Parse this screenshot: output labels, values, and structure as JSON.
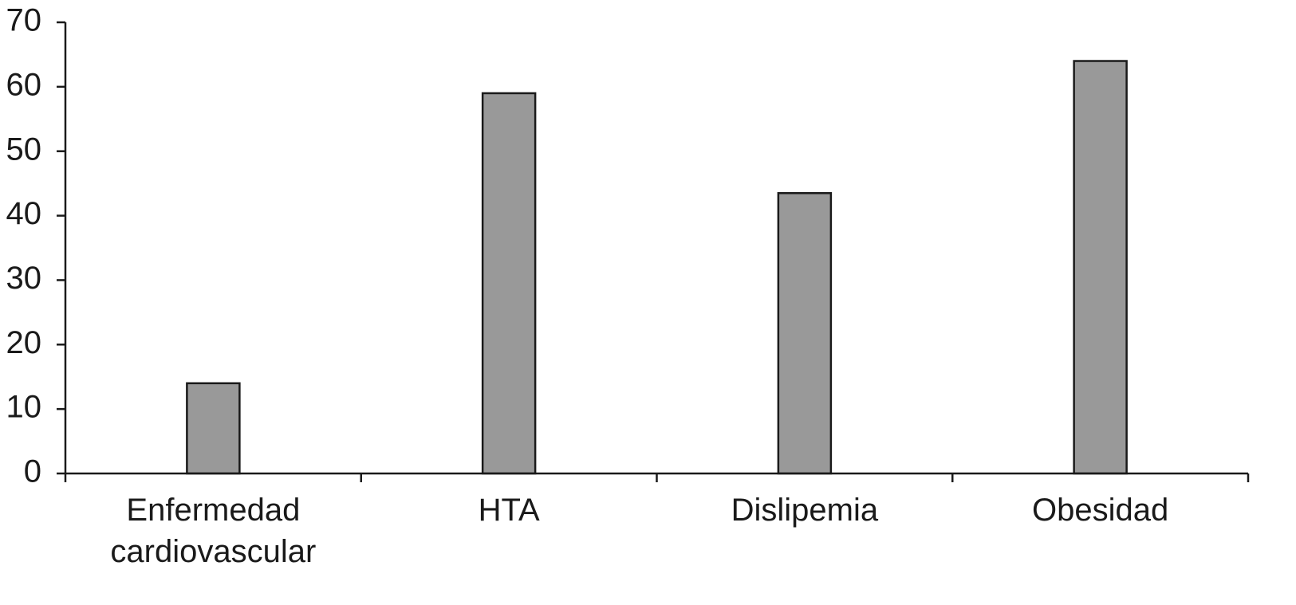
{
  "chart_data": {
    "type": "bar",
    "categories": [
      "Enfermedad cardiovascular",
      "HTA",
      "Dislipemia",
      "Obesidad"
    ],
    "values": [
      14,
      59,
      43.5,
      64
    ],
    "color": "#999999",
    "ylim": [
      0,
      70
    ],
    "yticks": [
      0,
      10,
      20,
      30,
      40,
      50,
      60,
      70
    ],
    "grid": false
  }
}
